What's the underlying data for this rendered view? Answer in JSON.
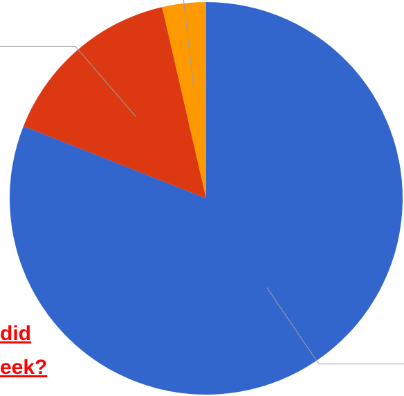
{
  "chart_data": {
    "type": "pie",
    "start_angle_deg": 0,
    "direction": "clockwise",
    "slices": [
      {
        "value": 81,
        "color": "#3366cc"
      },
      {
        "value": 15.4,
        "color": "#dc3912"
      },
      {
        "value": 3.6,
        "color": "#ff9900"
      }
    ],
    "legend": "none",
    "title": ""
  },
  "overlay": {
    "line1": "did",
    "line2": "eek?",
    "color": "#ff0000"
  }
}
